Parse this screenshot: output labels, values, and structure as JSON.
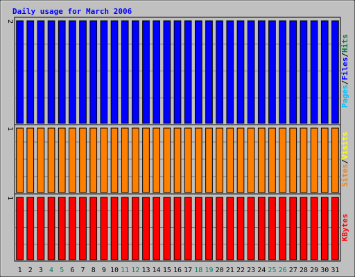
{
  "chart_data": {
    "type": "bar",
    "title": "Daily usage for March 2006",
    "categories": [
      "1",
      "2",
      "3",
      "4",
      "5",
      "6",
      "7",
      "8",
      "9",
      "10",
      "11",
      "12",
      "13",
      "14",
      "15",
      "16",
      "17",
      "18",
      "19",
      "20",
      "21",
      "22",
      "23",
      "24",
      "25",
      "26",
      "27",
      "28",
      "29",
      "30",
      "31"
    ],
    "weekend_days": [
      4,
      5,
      11,
      12,
      18,
      19,
      25,
      26
    ],
    "panels": [
      {
        "name": "Pages / Files / Hits",
        "label_parts": [
          {
            "text": "Pages",
            "color": "#00c0ff"
          },
          {
            "text": "/",
            "color": "#000000"
          },
          {
            "text": "Files",
            "color": "#0000ff"
          },
          {
            "text": "/",
            "color": "#000000"
          },
          {
            "text": "Hits",
            "color": "#008040"
          }
        ],
        "y_label": "2",
        "ylim": [
          0,
          2
        ],
        "series": [
          {
            "name": "Hits",
            "color": "#0000ff",
            "values": [
              2,
              2,
              2,
              2,
              2,
              2,
              2,
              2,
              2,
              2,
              2,
              2,
              2,
              2,
              2,
              2,
              2,
              2,
              2,
              2,
              2,
              2,
              2,
              2,
              2,
              2,
              2,
              2,
              2,
              2,
              2
            ]
          }
        ]
      },
      {
        "name": "Sites / Visits",
        "label_parts": [
          {
            "text": "Sites",
            "color": "#ff8000"
          },
          {
            "text": "/",
            "color": "#000000"
          },
          {
            "text": "Visits",
            "color": "#ffff00"
          }
        ],
        "y_label": "1",
        "ylim": [
          0,
          1
        ],
        "series": [
          {
            "name": "Sites",
            "color": "#ff8000",
            "values": [
              1,
              1,
              1,
              1,
              1,
              1,
              1,
              1,
              1,
              1,
              1,
              1,
              1,
              1,
              1,
              1,
              1,
              1,
              1,
              1,
              1,
              1,
              1,
              1,
              1,
              1,
              1,
              1,
              1,
              1,
              1
            ]
          }
        ]
      },
      {
        "name": "KBytes",
        "label_parts": [
          {
            "text": "KBytes",
            "color": "#ff0000"
          }
        ],
        "y_label": "1",
        "ylim": [
          0,
          1
        ],
        "series": [
          {
            "name": "KBytes",
            "color": "#ff0000",
            "values": [
              1,
              1,
              1,
              1,
              1,
              1,
              1,
              1,
              1,
              1,
              1,
              1,
              1,
              1,
              1,
              1,
              1,
              1,
              1,
              1,
              1,
              1,
              1,
              1,
              1,
              1,
              1,
              1,
              1,
              1,
              1
            ]
          }
        ]
      }
    ]
  },
  "colors": {
    "background": "#c0c0c0",
    "plot_area": "#c0c0c0",
    "title": "#0000ff",
    "weekday_label": "#000000",
    "weekend_label": "#00805f",
    "grid": "#808080"
  }
}
